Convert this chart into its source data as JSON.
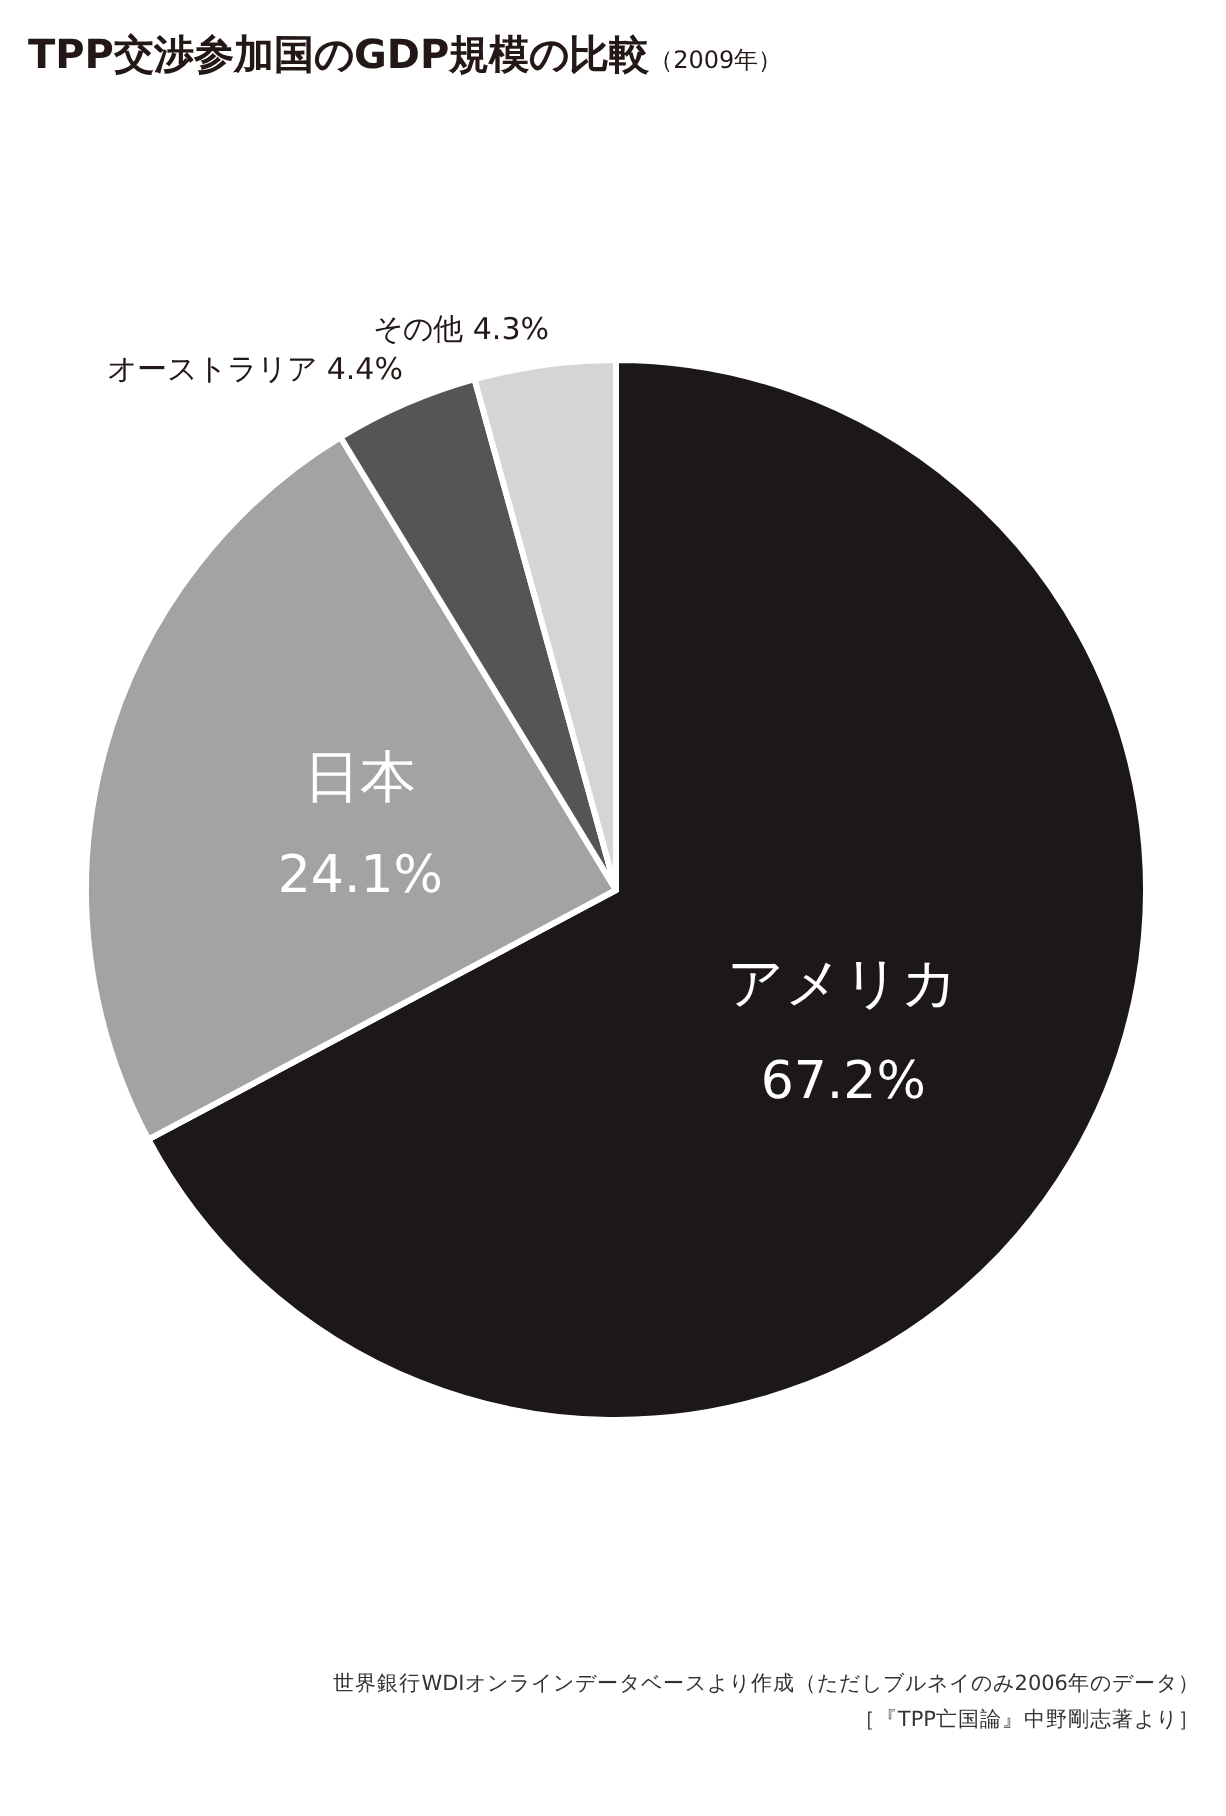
{
  "chart_data": {
    "type": "pie",
    "title": "TPP交渉参加国のGDP規模の比較",
    "subtitle": "（2009年）",
    "categories": [
      "アメリカ",
      "日本",
      "オーストラリア",
      "その他"
    ],
    "values": [
      67.2,
      24.1,
      4.4,
      4.3
    ],
    "value_labels": [
      "67.2%",
      "24.1%",
      "4.4%",
      "4.3%"
    ],
    "colors": [
      "#1c1718",
      "#a3a3a3",
      "#555555",
      "#d5d5d5"
    ],
    "annotations": [
      "世界銀行WDIオンラインデータベースより作成（ただしブルネイのみ2006年のデータ）",
      "［『TPP亡国論』中野剛志著より］"
    ]
  }
}
